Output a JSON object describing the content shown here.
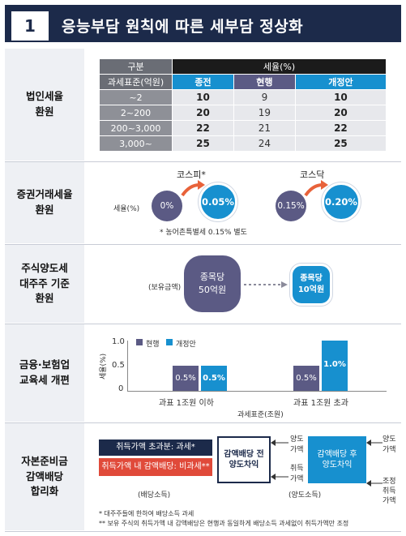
{
  "header": {
    "number": "1",
    "title": "응능부담 원칙에 따른 세부담 정상화"
  },
  "rows": [
    {
      "line1": "법인세율",
      "line2": "환원"
    },
    {
      "line1": "증권거래세율",
      "line2": "환원"
    },
    {
      "line1": "주식양도세",
      "line2": "대주주 기준",
      "line3": "환원"
    },
    {
      "line1": "금융·보험업",
      "line2": "교육세 개편"
    },
    {
      "line1": "자본준비금",
      "line2": "감액배당",
      "line3": "합리화"
    }
  ],
  "corp_tax": {
    "col_category": "구분",
    "col_rate": "세율(%)",
    "col_base": "과세표준(억원)",
    "col_prev": "종전",
    "col_curr": "현행",
    "col_new": "개정안",
    "rows": [
      {
        "base": "~2",
        "prev": "10",
        "curr": "9",
        "new": "10"
      },
      {
        "base": "2~200",
        "prev": "20",
        "curr": "19",
        "new": "20"
      },
      {
        "base": "200~3,000",
        "prev": "22",
        "curr": "21",
        "new": "22"
      },
      {
        "base": "3,000~",
        "prev": "25",
        "curr": "24",
        "new": "25"
      }
    ]
  },
  "securities_tax": {
    "kospi_label": "코스피*",
    "kosdaq_label": "코스닥",
    "rate_label": "세율(%)",
    "kospi_curr": "0%",
    "kospi_new": "0.05%",
    "kosdaq_curr": "0.15%",
    "kosdaq_new": "0.20%",
    "note": "* 농어촌특별세 0.15% 별도"
  },
  "major_shareholder": {
    "holding_label": "(보유금액)",
    "curr_line1": "종목당",
    "curr_line2": "50억원",
    "new_line1": "종목당",
    "new_line2": "10억원"
  },
  "edu_tax": {
    "legend_curr": "현행",
    "legend_new": "개정안",
    "y_axis_label": "세율(%)",
    "x_axis_label": "과세표준(조원)",
    "y_ticks": [
      "1.0",
      "0.5",
      "0"
    ],
    "categories": [
      "과표 1조원 이하",
      "과표 1조원 초과"
    ],
    "bar_labels": {
      "g1_curr": "0.5%",
      "g1_new": "0.5%",
      "g2_curr": "0.5%",
      "g2_new": "1.0%"
    }
  },
  "chart_data": {
    "type": "bar",
    "categories": [
      "과표 1조원 이하",
      "과표 1조원 초과"
    ],
    "series": [
      {
        "name": "현행",
        "values": [
          0.5,
          0.5
        ]
      },
      {
        "name": "개정안",
        "values": [
          0.5,
          1.0
        ]
      }
    ],
    "xlabel": "과세표준(조원)",
    "ylabel": "세율(%)",
    "ylim": [
      0,
      1.0
    ],
    "colors": {
      "현행": "#5b5a84",
      "개정안": "#1790cf"
    }
  },
  "capital_reserve": {
    "dividend_box1": "취득가액 초과분: 과세*",
    "dividend_box2": "취득가액 내 감액배당: 비과세**",
    "dividend_caption": "(배당소득)",
    "transfer_before_line1": "감액배당 전",
    "transfer_before_line2": "양도차익",
    "transfer_after_line1": "감액배당 후",
    "transfer_after_line2": "양도차익",
    "transfer_caption": "(양도소득)",
    "before_price_1": "양도",
    "before_price_2": "가액",
    "before_cost_1": "취득",
    "before_cost_2": "가액",
    "after_price_1": "양도",
    "after_price_2": "가액",
    "after_cost_1": "조정",
    "after_cost_2": "취득",
    "after_cost_3": "가액",
    "note1": "* 대주주들에 한하여 배당소득 과세",
    "note2": "** 보유 주식의 취득가액 내 감액배당은 현행과 동일하게 배당소득 과세없이 취득가액만 조정"
  },
  "colors": {
    "navy": "#1c2a4a",
    "blue": "#1790cf",
    "purple": "#5b5a84",
    "red": "#e04a3a",
    "orange": "#e8623a"
  }
}
